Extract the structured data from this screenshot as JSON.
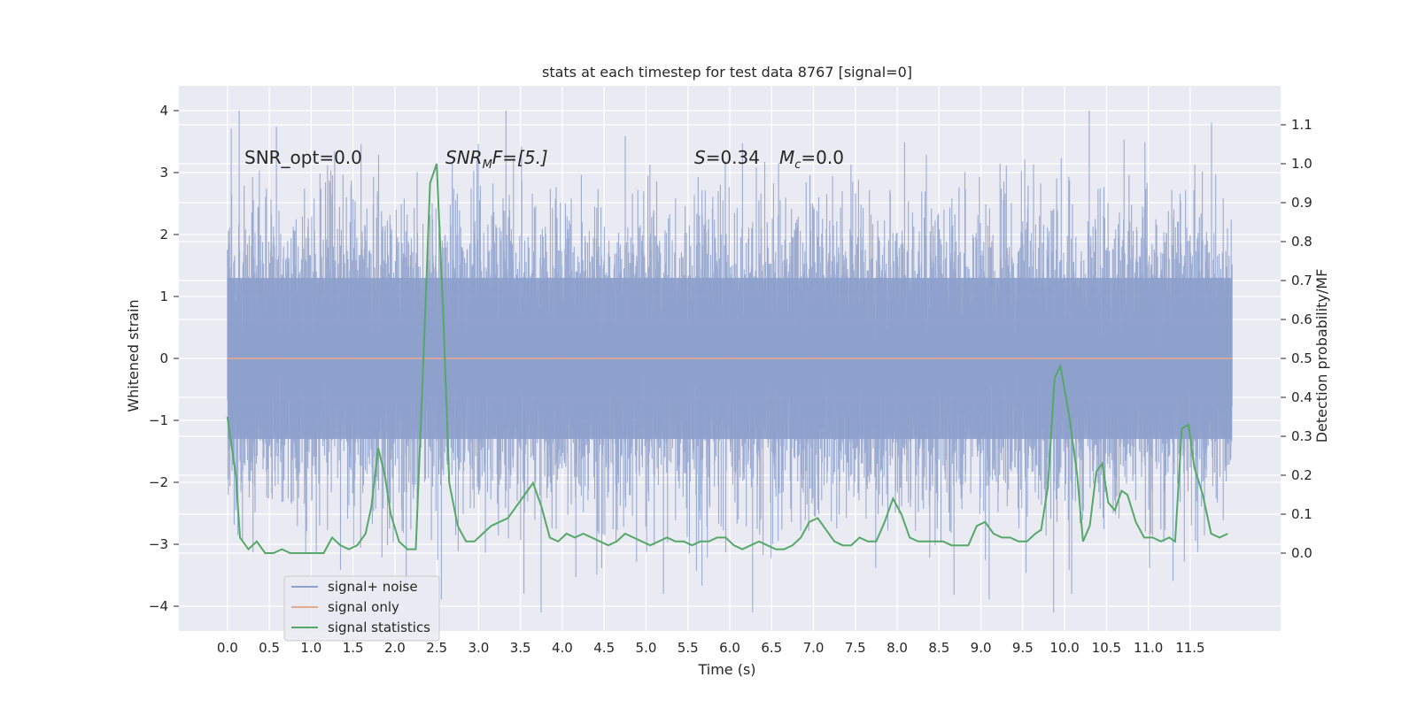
{
  "chart_data": {
    "type": "line",
    "title": "stats at each timestep for test data 8767 [signal=0]",
    "xlabel": "Time (s)",
    "ylabel": "Whitened strain",
    "ylabel_right": "Detection probability/MF",
    "xlim": [
      -0.58,
      12.58
    ],
    "ylim": [
      -4.4,
      4.4
    ],
    "ylim_right": [
      -0.2,
      1.2
    ],
    "x_ticks": [
      "0.0",
      "0.5",
      "1.0",
      "1.5",
      "2.0",
      "2.5",
      "3.0",
      "3.5",
      "4.0",
      "4.5",
      "5.0",
      "5.5",
      "6.0",
      "6.5",
      "7.0",
      "7.5",
      "8.0",
      "8.5",
      "9.0",
      "9.5",
      "10.0",
      "10.5",
      "11.0",
      "11.5"
    ],
    "y_ticks": [
      "4",
      "3",
      "2",
      "1",
      "0",
      "−1",
      "−2",
      "−3",
      "−4"
    ],
    "y_ticks_right": [
      "1.1",
      "1.0",
      "0.9",
      "0.8",
      "0.7",
      "0.6",
      "0.5",
      "0.4",
      "0.3",
      "0.2",
      "0.1",
      "0.0"
    ],
    "annotations": {
      "snr_opt": "SNR_opt=0.0",
      "snr_mf_main": "SNR",
      "snr_mf_sub": "M",
      "snr_mf_rest": "F=[5.]",
      "s_label": "S",
      "s_value": "=0.34",
      "mc_label": "M",
      "mc_sub": "c",
      "mc_value": "=0.0"
    },
    "legend": {
      "placement": "lower-left",
      "entries": [
        "signal+ noise",
        "signal only",
        "signal statistics"
      ]
    },
    "colors": {
      "noise": "#8da0cb",
      "signal": "#e8a88b",
      "stats": "#55a868",
      "background": "#eaeaf2",
      "grid": "#ffffff"
    },
    "series": [
      {
        "name": "signal+ noise",
        "axis": "left",
        "description_kind": "noise",
        "t_start": 0.0,
        "t_end": 12.0,
        "amplitude_range": [
          -4.1,
          4.0
        ]
      },
      {
        "name": "signal only",
        "axis": "left",
        "x": [
          0.0,
          12.0
        ],
        "y": [
          0.0,
          0.0
        ]
      },
      {
        "name": "signal statistics",
        "axis": "right",
        "x": [
          0.0,
          0.1,
          0.15,
          0.25,
          0.35,
          0.45,
          0.55,
          0.65,
          0.75,
          0.85,
          0.95,
          1.05,
          1.15,
          1.25,
          1.35,
          1.45,
          1.55,
          1.65,
          1.72,
          1.8,
          1.88,
          1.95,
          2.05,
          2.15,
          2.25,
          2.35,
          2.42,
          2.5,
          2.58,
          2.65,
          2.75,
          2.85,
          2.95,
          3.05,
          3.15,
          3.25,
          3.35,
          3.45,
          3.55,
          3.65,
          3.75,
          3.85,
          3.95,
          4.05,
          4.15,
          4.25,
          4.35,
          4.45,
          4.55,
          4.65,
          4.75,
          4.85,
          4.95,
          5.05,
          5.15,
          5.25,
          5.35,
          5.45,
          5.55,
          5.65,
          5.75,
          5.85,
          5.95,
          6.05,
          6.15,
          6.25,
          6.35,
          6.45,
          6.55,
          6.65,
          6.75,
          6.85,
          6.95,
          7.05,
          7.15,
          7.25,
          7.35,
          7.45,
          7.55,
          7.65,
          7.75,
          7.85,
          7.95,
          8.05,
          8.15,
          8.25,
          8.35,
          8.45,
          8.55,
          8.65,
          8.75,
          8.85,
          8.95,
          9.05,
          9.15,
          9.25,
          9.35,
          9.45,
          9.55,
          9.65,
          9.72,
          9.8,
          9.88,
          9.95,
          10.05,
          10.15,
          10.22,
          10.3,
          10.38,
          10.45,
          10.52,
          10.6,
          10.68,
          10.75,
          10.85,
          10.95,
          11.05,
          11.15,
          11.25,
          11.32,
          11.4,
          11.48,
          11.55,
          11.65,
          11.75,
          11.85,
          11.95
        ],
        "y": [
          0.35,
          0.2,
          0.04,
          0.01,
          0.03,
          0.0,
          0.0,
          0.01,
          0.0,
          0.0,
          0.0,
          0.0,
          0.0,
          0.04,
          0.02,
          0.01,
          0.02,
          0.05,
          0.12,
          0.27,
          0.2,
          0.1,
          0.03,
          0.01,
          0.01,
          0.55,
          0.95,
          1.0,
          0.6,
          0.18,
          0.07,
          0.03,
          0.03,
          0.05,
          0.07,
          0.08,
          0.09,
          0.12,
          0.15,
          0.18,
          0.12,
          0.04,
          0.03,
          0.05,
          0.04,
          0.05,
          0.04,
          0.03,
          0.02,
          0.03,
          0.05,
          0.04,
          0.03,
          0.02,
          0.03,
          0.04,
          0.03,
          0.03,
          0.02,
          0.03,
          0.03,
          0.04,
          0.04,
          0.02,
          0.01,
          0.02,
          0.03,
          0.02,
          0.01,
          0.01,
          0.02,
          0.04,
          0.08,
          0.09,
          0.06,
          0.03,
          0.02,
          0.02,
          0.04,
          0.03,
          0.03,
          0.08,
          0.14,
          0.1,
          0.04,
          0.03,
          0.03,
          0.03,
          0.03,
          0.02,
          0.02,
          0.02,
          0.07,
          0.08,
          0.05,
          0.04,
          0.04,
          0.03,
          0.03,
          0.05,
          0.06,
          0.17,
          0.45,
          0.48,
          0.36,
          0.2,
          0.03,
          0.07,
          0.21,
          0.23,
          0.13,
          0.11,
          0.16,
          0.15,
          0.08,
          0.04,
          0.04,
          0.03,
          0.04,
          0.03,
          0.32,
          0.33,
          0.22,
          0.15,
          0.05,
          0.04,
          0.05
        ]
      }
    ]
  }
}
